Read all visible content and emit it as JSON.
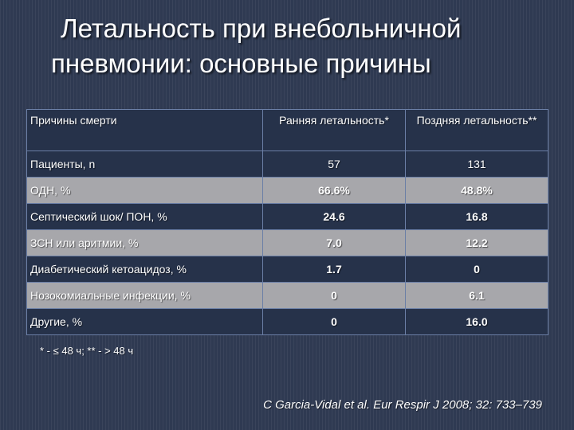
{
  "title": {
    "line1": "Летальность при внебольничной",
    "line2": "пневмонии: основные причины"
  },
  "table": {
    "headers": [
      "Причины смерти",
      "Ранняя летальность*",
      "Поздняя летальность**"
    ],
    "rows": [
      {
        "cause": "Пациенты, n",
        "early": "57",
        "late": "131"
      },
      {
        "cause": "ОДН, %",
        "early": "66.6%",
        "late": "48.8%"
      },
      {
        "cause": "Септический шок/ ПОН, %",
        "early": "24.6",
        "late": "16.8"
      },
      {
        "cause": "ЗСН или аритмии, %",
        "early": "7.0",
        "late": "12.2"
      },
      {
        "cause": "Диабетический кетоацидоз, %",
        "early": "1.7",
        "late": "0"
      },
      {
        "cause": "Нозокомиальные инфекции, %",
        "early": "0",
        "late": "6.1"
      },
      {
        "cause": "Другие, %",
        "early": "0",
        "late": "16.0"
      }
    ]
  },
  "footnote": "* - ≤ 48 ч; ** - > 48 ч",
  "citation": "C Garcia-Vidal et al. Eur Respir J 2008; 32: 733–739",
  "colors": {
    "background": "#2f3a52",
    "row_dark": "#26324a",
    "row_light": "#a7a7ab",
    "border": "#6b7fa6",
    "text": "#ffffff"
  }
}
